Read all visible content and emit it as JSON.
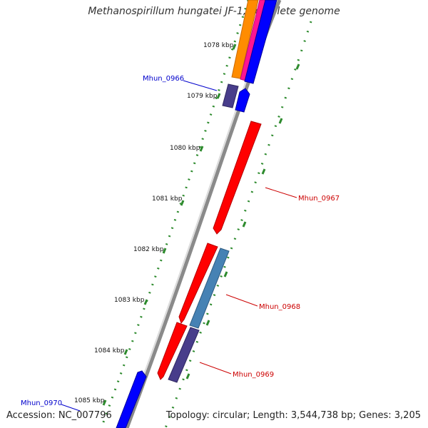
{
  "title": "Methanospirillum hungatei JF-1, complete genome",
  "footer": {
    "accession": "Accession: NC_007796",
    "summary": "Topology: circular; Length: 3,544,738 bp; Genes: 3,205"
  },
  "scale_labels": [
    "1078 kbp",
    "1079 kbp",
    "1080 kbp",
    "1081 kbp",
    "1082 kbp",
    "1083 kbp",
    "1084 kbp",
    "1085 kbp"
  ],
  "genes": [
    {
      "label": "Mhun_0966",
      "color": "#0000cc"
    },
    {
      "label": "Mhun_0967",
      "color": "#cc0000"
    },
    {
      "label": "Mhun_0968",
      "color": "#cc0000"
    },
    {
      "label": "Mhun_0969",
      "color": "#cc0000"
    },
    {
      "label": "Mhun_0970",
      "color": "#0000cc"
    }
  ],
  "colors": {
    "forward_gene": "#0000ff",
    "reverse_gene": "#ff0000",
    "orange_feature": "#ff8c00",
    "pink_feature": "#ff1493",
    "purple_feature": "#483d8b",
    "steelblue_feature": "#4682b4",
    "backbone": "#808080",
    "gc_ticks": "#228b22"
  }
}
